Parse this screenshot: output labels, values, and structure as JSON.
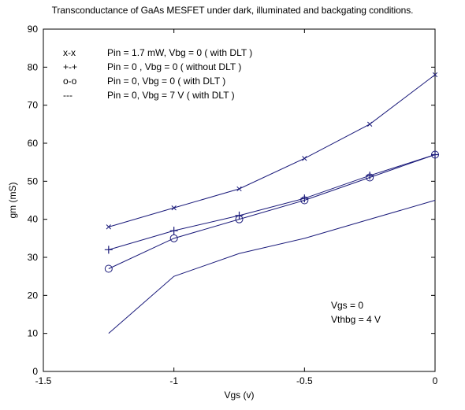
{
  "chart_data": {
    "type": "line",
    "title": "Transconductance of GaAs MESFET under dark, illuminated and backgating conditions.",
    "xlabel": "Vgs (v)",
    "ylabel": "gm (mS)",
    "xlim": [
      -1.5,
      0
    ],
    "ylim": [
      0,
      90
    ],
    "xticks": [
      -1.5,
      -1,
      -0.5,
      0
    ],
    "xtick_labels": [
      "-1.5",
      "-1",
      "-0.5",
      "0"
    ],
    "yticks": [
      0,
      10,
      20,
      30,
      40,
      50,
      60,
      70,
      80,
      90
    ],
    "ytick_labels": [
      "0",
      "10",
      "20",
      "30",
      "40",
      "50",
      "60",
      "70",
      "80",
      "90"
    ],
    "grid": false,
    "legend_position": "top-left",
    "line_color": "#1a1a7a",
    "x": [
      -1.25,
      -1,
      -0.75,
      -0.5,
      -0.25,
      0
    ],
    "series": [
      {
        "name": "Pin = 1.7 mW, Vbg = 0 ( with DLT )",
        "key": "x-x",
        "marker": "x",
        "values": [
          38,
          43,
          48,
          56,
          65,
          78
        ]
      },
      {
        "name": "Pin = 0 , Vbg = 0 ( without DLT )",
        "key": "+-+",
        "marker": "+",
        "values": [
          32,
          37,
          41,
          45.5,
          51.5,
          57
        ]
      },
      {
        "name": "Pin = 0, Vbg = 0 ( with DLT )",
        "key": "o-o",
        "marker": "o",
        "values": [
          27,
          35,
          40,
          45,
          51,
          57
        ]
      },
      {
        "name": "Pin = 0, Vbg = 7 V ( with DLT )",
        "key": "---",
        "marker": "none",
        "values": [
          10,
          25,
          31,
          35,
          40,
          45
        ]
      }
    ],
    "annotations": [
      "Vgs = 0",
      "Vthbg = 4 V"
    ]
  }
}
